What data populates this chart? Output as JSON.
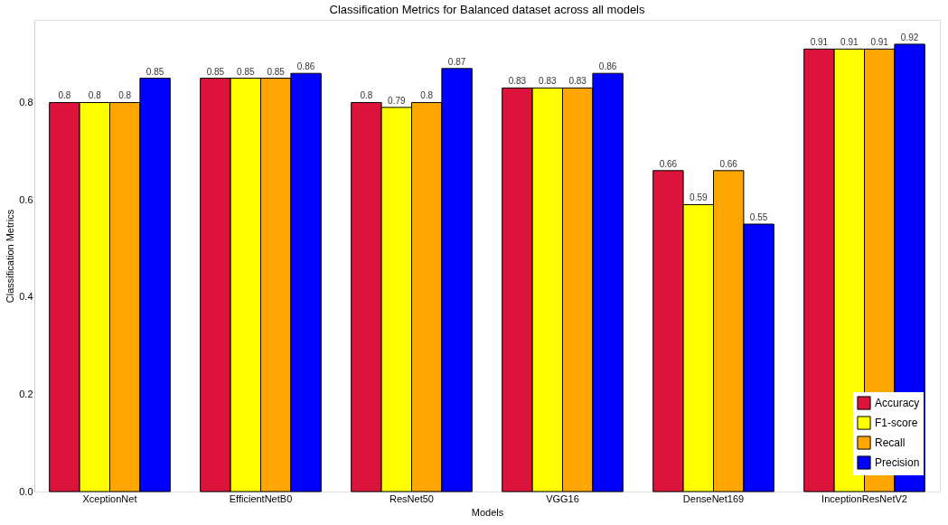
{
  "chart_data": {
    "type": "bar",
    "title": "Classification Metrics for Balanced dataset across all models",
    "xlabel": "Models",
    "ylabel": "Classification Metrics",
    "categories": [
      "XceptionNet",
      "EfficientNetB0",
      "ResNet50",
      "VGG16",
      "DenseNet169",
      "InceptionResNetV2"
    ],
    "series": [
      {
        "name": "Accuracy",
        "color": "#dc143c",
        "values": [
          0.8,
          0.85,
          0.8,
          0.83,
          0.66,
          0.91
        ]
      },
      {
        "name": "F1-score",
        "color": "#ffff00",
        "values": [
          0.8,
          0.85,
          0.79,
          0.83,
          0.59,
          0.91
        ]
      },
      {
        "name": "Recall",
        "color": "#ffa500",
        "values": [
          0.8,
          0.85,
          0.8,
          0.83,
          0.66,
          0.91
        ]
      },
      {
        "name": "Precision",
        "color": "#0000ff",
        "values": [
          0.85,
          0.86,
          0.87,
          0.86,
          0.55,
          0.92
        ]
      }
    ],
    "ylim": [
      0,
      0.97
    ],
    "yticks": [
      {
        "value": 0,
        "label": "0.0"
      },
      {
        "value": 0.2,
        "label": "0.2"
      },
      {
        "value": 0.4,
        "label": "0.4"
      },
      {
        "value": 0.6,
        "label": "0.6"
      },
      {
        "value": 0.8,
        "label": "0.8"
      }
    ],
    "data_labels": true,
    "legend": "bottom right",
    "grid": false
  }
}
